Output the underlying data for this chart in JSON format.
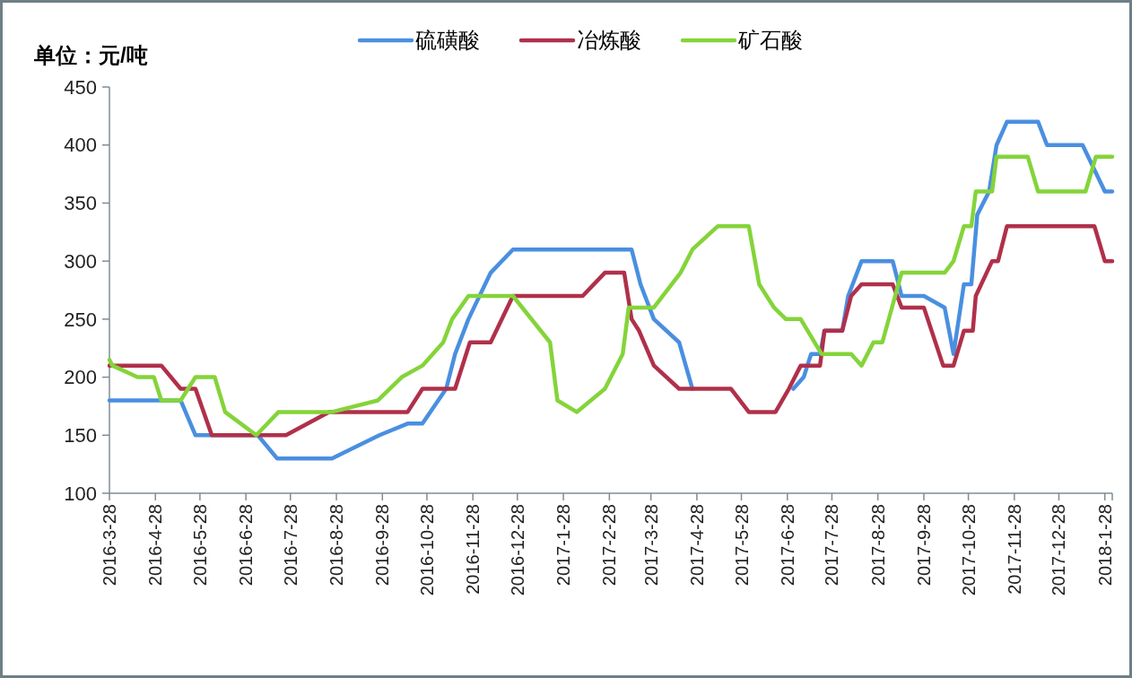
{
  "chart_data": {
    "type": "line",
    "ylabel": "单位：元/吨",
    "legend": "top",
    "grid": false,
    "marker": "none",
    "line_style": "solid",
    "xlim": [
      "2016-03-28",
      "2018-02-02"
    ],
    "xticks": [
      {
        "value": "2016-03-28",
        "label": "2016-3-28"
      },
      {
        "value": "2016-04-28",
        "label": "2016-4-28"
      },
      {
        "value": "2016-05-28",
        "label": "2016-5-28"
      },
      {
        "value": "2016-06-28",
        "label": "2016-6-28"
      },
      {
        "value": "2016-07-28",
        "label": "2016-7-28"
      },
      {
        "value": "2016-08-28",
        "label": "2016-8-28"
      },
      {
        "value": "2016-09-28",
        "label": "2016-9-28"
      },
      {
        "value": "2016-10-28",
        "label": "2016-10-28"
      },
      {
        "value": "2016-11-28",
        "label": "2016-11-28"
      },
      {
        "value": "2016-12-28",
        "label": "2016-12-28"
      },
      {
        "value": "2017-01-28",
        "label": "2017-1-28"
      },
      {
        "value": "2017-02-28",
        "label": "2017-2-28"
      },
      {
        "value": "2017-03-28",
        "label": "2017-3-28"
      },
      {
        "value": "2017-04-28",
        "label": "2017-4-28"
      },
      {
        "value": "2017-05-28",
        "label": "2017-5-28"
      },
      {
        "value": "2017-06-28",
        "label": "2017-6-28"
      },
      {
        "value": "2017-07-28",
        "label": "2017-7-28"
      },
      {
        "value": "2017-08-28",
        "label": "2017-8-28"
      },
      {
        "value": "2017-09-28",
        "label": "2017-9-28"
      },
      {
        "value": "2017-10-28",
        "label": "2017-10-28"
      },
      {
        "value": "2017-11-28",
        "label": "2017-11-28"
      },
      {
        "value": "2017-12-28",
        "label": "2017-12-28"
      },
      {
        "value": "2018-01-28",
        "label": "2018-1-28"
      }
    ],
    "ylim": [
      100,
      450
    ],
    "yticks": [
      100,
      150,
      200,
      250,
      300,
      350,
      400,
      450
    ],
    "series": [
      {
        "name": "硫磺酸",
        "color": "#4a8fe0",
        "x": [
          "2016-03-28",
          "2016-04-30",
          "2016-05-15",
          "2016-05-25",
          "2016-07-06",
          "2016-07-19",
          "2016-08-25",
          "2016-09-26",
          "2016-10-15",
          "2016-10-25",
          "2016-11-10",
          "2016-11-16",
          "2016-11-25",
          "2016-12-10",
          "2016-12-25",
          "2017-03-15",
          "2017-03-21",
          "2017-03-30",
          "2017-04-16",
          "2017-04-25",
          "2017-05-21",
          "2017-06-02",
          "2017-06-20",
          "2017-07-02",
          "2017-07-09",
          "2017-07-14",
          "2017-07-20",
          "2017-07-23",
          "2017-08-04",
          "2017-08-08",
          "2017-08-17",
          "2017-09-07",
          "2017-09-13",
          "2017-09-28",
          "2017-10-12",
          "2017-10-18",
          "2017-10-25",
          "2017-10-30",
          "2017-11-03",
          "2017-11-11",
          "2017-11-16",
          "2017-11-23",
          "2017-12-14",
          "2017-12-20",
          "2018-01-13",
          "2018-01-28",
          "2018-02-02"
        ],
        "values": [
          180,
          180,
          180,
          150,
          150,
          130,
          130,
          150,
          160,
          160,
          190,
          220,
          250,
          290,
          310,
          310,
          280,
          250,
          230,
          190,
          null,
          null,
          null,
          190,
          200,
          220,
          220,
          240,
          240,
          270,
          300,
          300,
          270,
          270,
          260,
          220,
          280,
          280,
          340,
          360,
          400,
          420,
          420,
          400,
          400,
          360,
          360
        ]
      },
      {
        "name": "冶炼酸",
        "color": "#b0304a",
        "x": [
          "2016-03-28",
          "2016-05-02",
          "2016-05-15",
          "2016-05-25",
          "2016-06-05",
          "2016-07-25",
          "2016-08-23",
          "2016-10-15",
          "2016-10-25",
          "2016-11-16",
          "2016-11-26",
          "2016-12-10",
          "2016-12-25",
          "2017-02-10",
          "2017-02-25",
          "2017-03-10",
          "2017-03-15",
          "2017-03-20",
          "2017-03-30",
          "2017-04-16",
          "2017-05-21",
          "2017-06-02",
          "2017-06-20",
          "2017-06-29",
          "2017-07-07",
          "2017-07-20",
          "2017-07-23",
          "2017-08-04",
          "2017-08-10",
          "2017-08-17",
          "2017-09-07",
          "2017-09-13",
          "2017-09-28",
          "2017-10-11",
          "2017-10-18",
          "2017-10-25",
          "2017-10-31",
          "2017-11-02",
          "2017-11-13",
          "2017-11-17",
          "2017-11-23",
          "2018-01-21",
          "2018-01-28",
          "2018-02-02"
        ],
        "values": [
          210,
          210,
          190,
          190,
          150,
          150,
          170,
          170,
          190,
          190,
          230,
          230,
          270,
          270,
          290,
          290,
          250,
          240,
          210,
          190,
          190,
          170,
          170,
          190,
          210,
          210,
          240,
          240,
          270,
          280,
          280,
          260,
          260,
          210,
          210,
          240,
          240,
          270,
          300,
          300,
          330,
          330,
          300,
          300
        ]
      },
      {
        "name": "矿石酸",
        "color": "#84d43a",
        "x": [
          "2016-03-28",
          "2016-03-30",
          "2016-04-16",
          "2016-04-27",
          "2016-05-02",
          "2016-05-15",
          "2016-05-25",
          "2016-06-07",
          "2016-06-14",
          "2016-07-05",
          "2016-07-20",
          "2016-08-25",
          "2016-09-25",
          "2016-10-11",
          "2016-10-25",
          "2016-11-08",
          "2016-11-14",
          "2016-11-25",
          "2016-12-25",
          "2017-01-19",
          "2017-01-24",
          "2017-02-06",
          "2017-02-25",
          "2017-03-09",
          "2017-03-13",
          "2017-03-30",
          "2017-04-17",
          "2017-04-25",
          "2017-05-12",
          "2017-06-02",
          "2017-06-09",
          "2017-06-19",
          "2017-06-27",
          "2017-07-07",
          "2017-07-21",
          "2017-08-10",
          "2017-08-17",
          "2017-08-25",
          "2017-08-31",
          "2017-09-13",
          "2017-10-12",
          "2017-10-18",
          "2017-10-25",
          "2017-10-30",
          "2017-11-02",
          "2017-11-13",
          "2017-11-16",
          "2017-12-07",
          "2017-12-14",
          "2018-01-15",
          "2018-01-22",
          "2018-02-02"
        ],
        "values": [
          215,
          210,
          200,
          200,
          180,
          180,
          200,
          200,
          170,
          150,
          170,
          170,
          180,
          200,
          210,
          230,
          250,
          270,
          270,
          230,
          180,
          170,
          190,
          220,
          260,
          260,
          290,
          310,
          330,
          330,
          280,
          260,
          250,
          250,
          220,
          220,
          210,
          230,
          230,
          290,
          290,
          300,
          330,
          330,
          360,
          360,
          390,
          390,
          360,
          360,
          390,
          390
        ]
      }
    ]
  }
}
